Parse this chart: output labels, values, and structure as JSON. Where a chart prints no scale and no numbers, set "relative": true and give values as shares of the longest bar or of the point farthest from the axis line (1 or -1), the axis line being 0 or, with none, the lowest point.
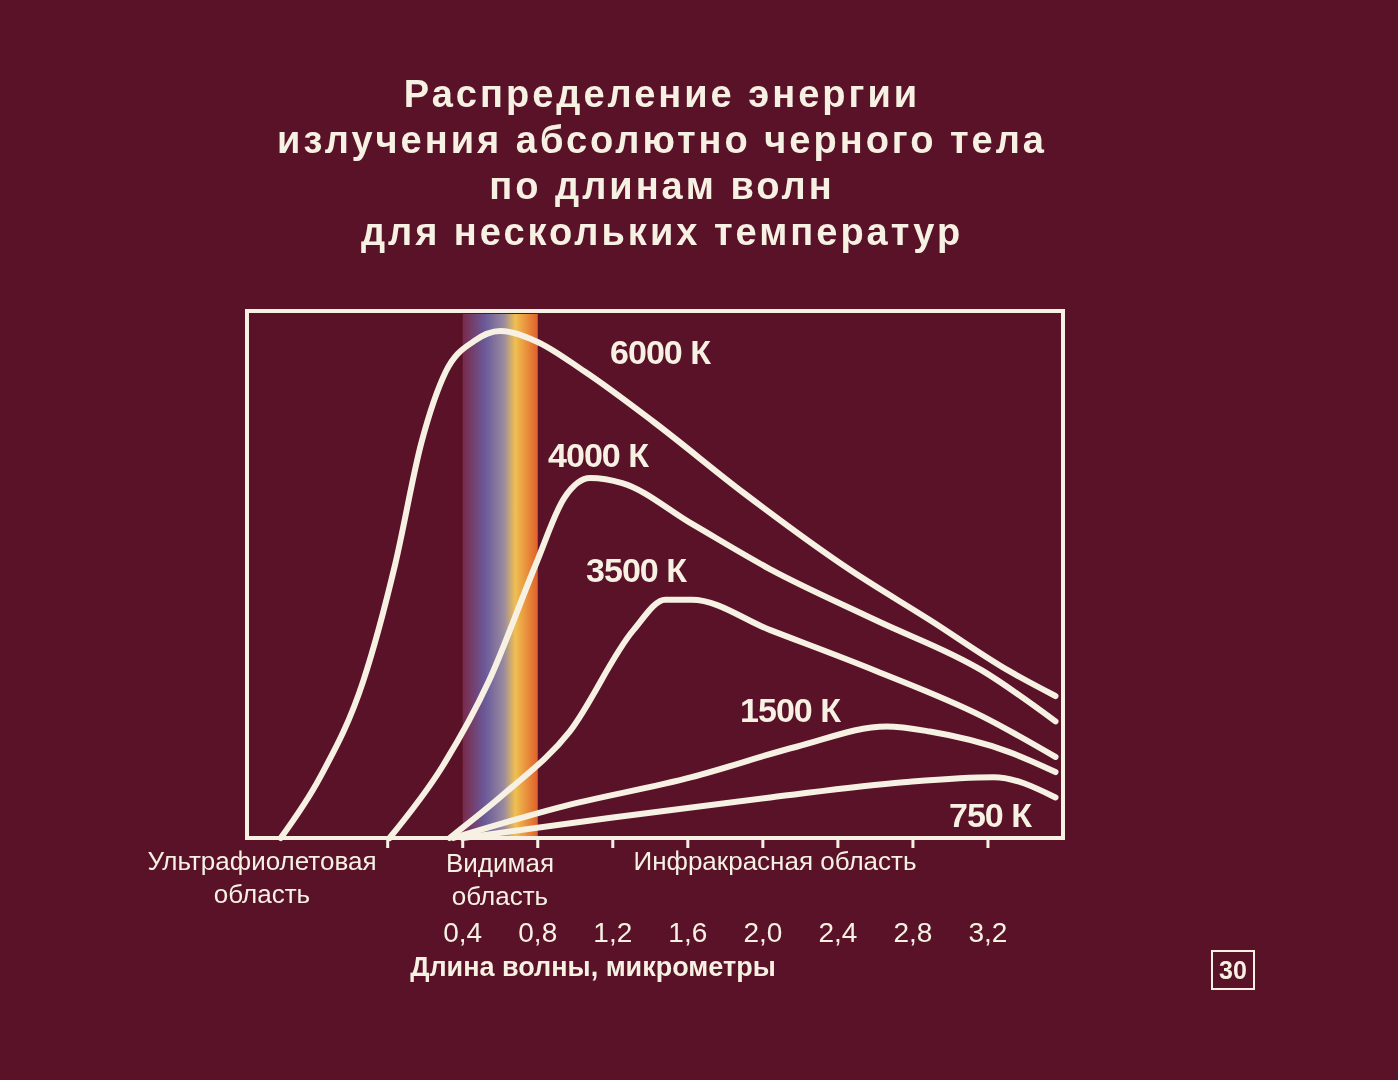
{
  "chart_data": {
    "type": "line",
    "title": "Распределение энергии\nизлучения абсолютно черного тела\nпо длинам волн\nдля нескольких температур",
    "xlabel": "Длина волны, микрометры",
    "relative": true,
    "xlim": [
      -0.75,
      3.6
    ],
    "xticks": [
      {
        "value": 0,
        "label": null
      },
      {
        "value": 0.4,
        "label": "0,4"
      },
      {
        "value": 0.8,
        "label": "0,8"
      },
      {
        "value": 1.2,
        "label": "1,2"
      },
      {
        "value": 1.6,
        "label": "1,6"
      },
      {
        "value": 2.0,
        "label": "2,0"
      },
      {
        "value": 2.4,
        "label": "2,4"
      },
      {
        "value": 2.8,
        "label": "2,8"
      },
      {
        "value": 3.2,
        "label": "3,2"
      }
    ],
    "bands": [
      {
        "axis": "x",
        "from": 0.4,
        "to": 0.8
      }
    ],
    "series": [
      {
        "name": "6000 К",
        "color": "#f7f1e4",
        "x": [
          -0.57,
          -0.36,
          -0.13,
          0.04,
          0.18,
          0.31,
          0.46,
          0.6,
          0.79,
          1.05,
          1.42,
          1.9,
          2.46,
          2.89,
          3.31,
          3.56
        ],
        "values": [
          0,
          0.12,
          0.31,
          0.54,
          0.78,
          0.92,
          0.98,
          1,
          0.98,
          0.92,
          0.82,
          0.68,
          0.53,
          0.43,
          0.33,
          0.28
        ]
      },
      {
        "name": "4000 К",
        "color": "#f7f1e4",
        "x": [
          0.01,
          0.29,
          0.54,
          0.79,
          0.94,
          1.08,
          1.25,
          1.62,
          2.04,
          2.6,
          3.17,
          3.56
        ],
        "values": [
          0,
          0.14,
          0.31,
          0.54,
          0.67,
          0.71,
          0.7,
          0.62,
          0.53,
          0.43,
          0.33,
          0.23
        ]
      },
      {
        "name": "3500 К",
        "color": "#f7f1e4",
        "x": [
          0.33,
          0.63,
          0.97,
          1.31,
          1.48,
          1.62,
          2.04,
          2.6,
          3.17,
          3.56
        ],
        "values": [
          0,
          0.09,
          0.21,
          0.41,
          0.47,
          0.47,
          0.41,
          0.33,
          0.24,
          0.16
        ]
      },
      {
        "name": "1500 К",
        "color": "#f7f1e4",
        "x": [
          0.35,
          0.91,
          1.62,
          2.18,
          2.66,
          2.89,
          3.31,
          3.56
        ],
        "values": [
          0,
          0.06,
          0.12,
          0.18,
          0.22,
          0.21,
          0.17,
          0.13
        ]
      },
      {
        "name": "750 К",
        "color": "#f7f1e4",
        "x": [
          0.4,
          1.19,
          2.04,
          2.75,
          3.23,
          3.56
        ],
        "values": [
          0,
          0.04,
          0.08,
          0.11,
          0.12,
          0.08
        ]
      }
    ],
    "annotations": [
      "Ультрафиолетовая область",
      "Видимая область",
      "Инфракрасная область",
      "30"
    ]
  }
}
